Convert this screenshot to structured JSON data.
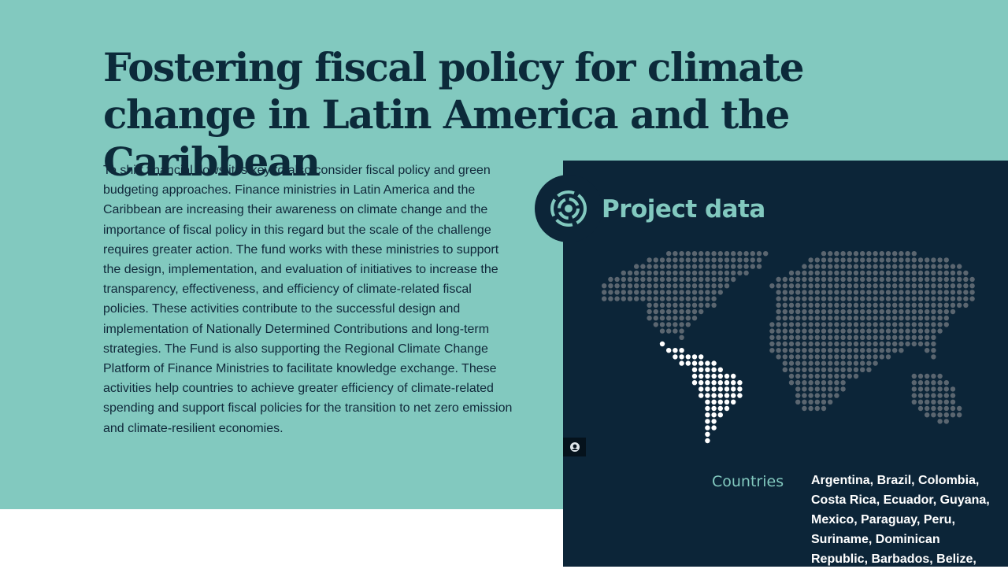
{
  "page": {
    "title": "Fostering fiscal policy for climate change in Latin America and the Caribbean",
    "intro": "To shift financial flows it is key to also consider fiscal policy and green budgeting approaches. Finance ministries in Latin America and the Caribbean are increasing their awareness on climate change and the importance of fiscal policy in this regard but the scale of the challenge requires greater action. The fund works with these ministries to support the design, implementation, and evaluation of initiatives to increase the transparency, effectiveness, and efficiency of climate-related fiscal policies. These activities contribute to the successful design and implementation of Nationally Determined Contributions and long-term strategies. The Fund is also supporting the Regional Climate Change Platform of Finance Ministries to facilitate knowledge exchange. These activities help countries to achieve greater efficiency of climate-related spending and support fiscal policies for the transition to net zero emission and climate-resilient economies."
  },
  "project_panel": {
    "title": "Project data",
    "icon": "project-data-icon",
    "map_icon": "world-dot-map",
    "view_toggle_icon": "eye-icon",
    "countries_label": "Countries",
    "countries": "Argentina, Brazil, Colombia, Costa Rica, Ecuador, Guyana, Mexico, Paraguay, Peru, Suriname, Dominican Republic, Barbados, Belize,"
  },
  "colors": {
    "teal": "#82c9bf",
    "navy": "#0c2538",
    "title": "#0c2a3a",
    "map_dot": "#5b6670",
    "map_highlight": "#ffffff"
  }
}
